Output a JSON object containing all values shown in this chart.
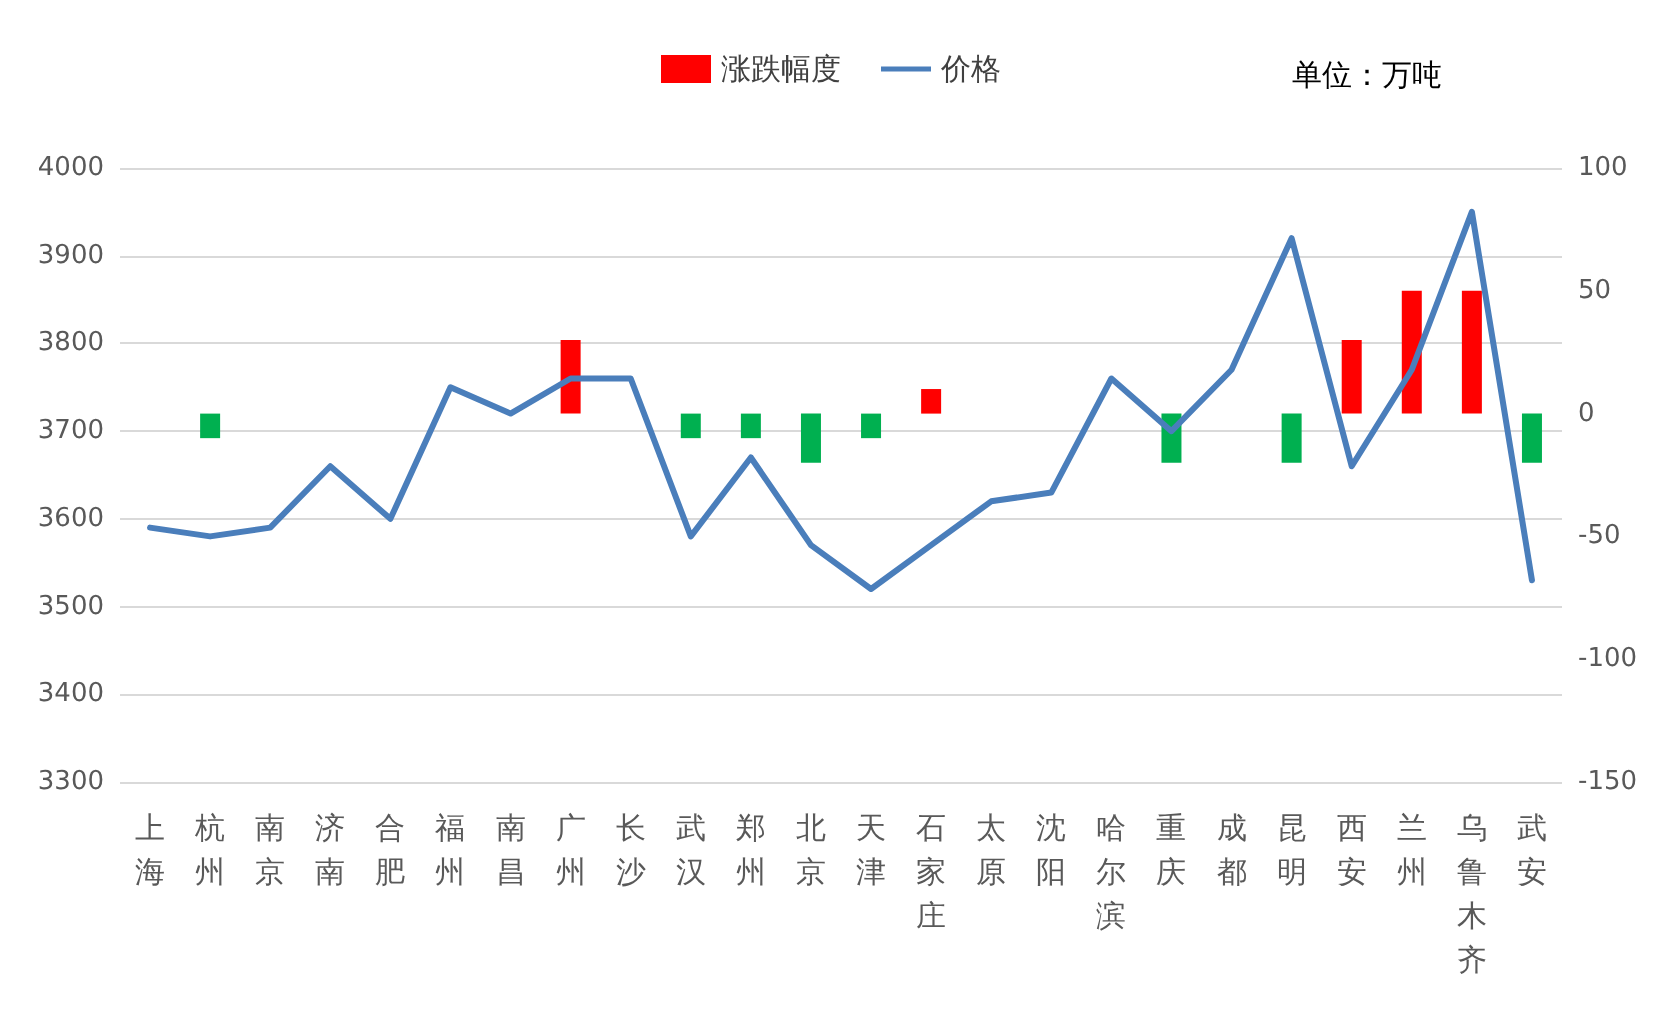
{
  "chart_data": {
    "type": "line",
    "categories": [
      "上海",
      "杭州",
      "南京",
      "济南",
      "合肥",
      "福州",
      "南昌",
      "广州",
      "长沙",
      "武汉",
      "郑州",
      "北京",
      "天津",
      "石家庄",
      "太原",
      "沈阳",
      "哈尔滨",
      "重庆",
      "成都",
      "昆明",
      "西安",
      "兰州",
      "乌鲁木齐",
      "武安"
    ],
    "series": [
      {
        "name": "涨跌幅度",
        "type": "bar",
        "axis": "y2",
        "color": "#ff0000",
        "colors": [
          "#00b050",
          "#00b050",
          "#00b050",
          "#00b050",
          "#00b050",
          "#00b050",
          "#00b050",
          "#ff0000",
          "#00b050",
          "#00b050",
          "#00b050",
          "#00b050",
          "#00b050",
          "#ff0000",
          "#00b050",
          "#00b050",
          "#00b050",
          "#00b050",
          "#00b050",
          "#00b050",
          "#ff0000",
          "#ff0000",
          "#ff0000",
          "#00b050"
        ],
        "values": [
          0,
          -10,
          0,
          0,
          0,
          0,
          0,
          30,
          0,
          -10,
          -10,
          -20,
          -10,
          10,
          0,
          0,
          0,
          -20,
          0,
          -20,
          30,
          50,
          50,
          -20
        ]
      },
      {
        "name": "价格",
        "color": "#4a7ebb",
        "values": [
          3590,
          3580,
          3590,
          3660,
          3600,
          3750,
          3720,
          3760,
          3760,
          3580,
          3670,
          3570,
          3520,
          3570,
          3620,
          3630,
          3760,
          3700,
          3770,
          3920,
          3660,
          3770,
          3950,
          3530
        ]
      }
    ],
    "ylim": [
      3300,
      4000
    ],
    "yticks": [
      3300,
      3400,
      3500,
      3600,
      3700,
      3800,
      3900,
      4000
    ],
    "y2lim": [
      -150,
      100
    ],
    "y2ticks": [
      -150,
      -100,
      -50,
      0,
      50,
      100
    ],
    "grid": "y",
    "legend": "top",
    "marker": "none",
    "line_style": "solid",
    "annotations": [
      "单位：万吨"
    ]
  }
}
